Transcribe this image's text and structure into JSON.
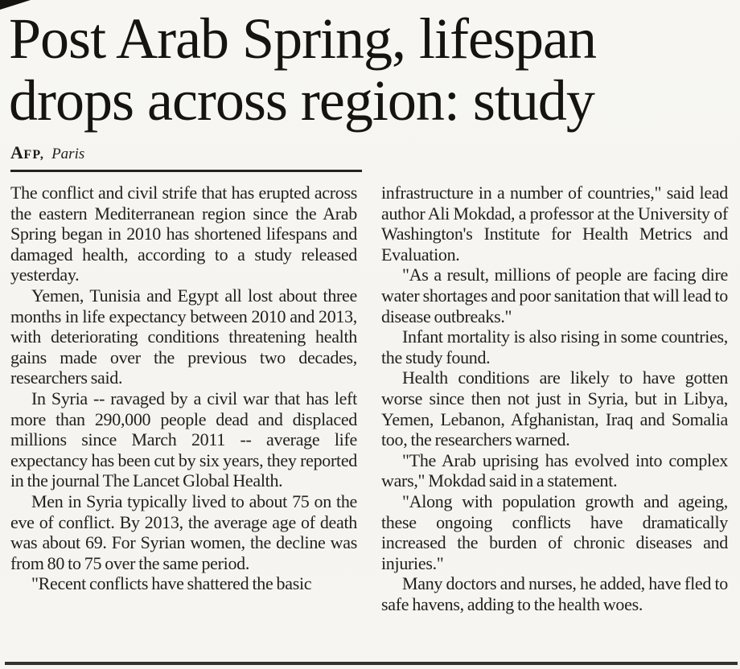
{
  "headline": {
    "line1": "Post Arab Spring, lifespan",
    "line2": "drops across region: study"
  },
  "byline": {
    "agency": "AFP,",
    "location": "Paris"
  },
  "columns": {
    "left": [
      {
        "indent": false,
        "text": "The conflict and civil strife that has erupted across the eastern Mediterranean region since the Arab Spring began in 2010 has shortened lifespans and damaged health, according to a study released yesterday."
      },
      {
        "indent": true,
        "text": "Yemen, Tunisia and Egypt all lost about three months in life expectancy between 2010 and 2013, with deteriorating conditions threatening health gains made over the previous two decades, researchers said."
      },
      {
        "indent": true,
        "text": "In Syria -- ravaged by a civil war that has left more than 290,000 people dead and displaced millions since March 2011 -- average life expectancy has been cut by six years, they reported in the journal The Lancet Global Health."
      },
      {
        "indent": true,
        "text": "Men in Syria typically lived to about 75 on the eve of conflict. By 2013, the average age of death was about 69. For Syrian women, the decline was from 80 to 75 over the same period."
      },
      {
        "indent": true,
        "text": "\"Recent conflicts have shattered the basic"
      }
    ],
    "right": [
      {
        "indent": false,
        "text": "infrastructure in a number of countries,\" said lead author Ali Mokdad, a professor at the University of Washington's Institute for Health Metrics and Evaluation."
      },
      {
        "indent": true,
        "text": "\"As a result, millions of people are facing dire water shortages and poor sanitation that will lead to disease outbreaks.\""
      },
      {
        "indent": true,
        "text": "Infant mortality is also rising in some countries, the study found."
      },
      {
        "indent": true,
        "text": "Health conditions are likely to have gotten worse since then not just in Syria, but in Libya, Yemen, Lebanon, Afghanistan, Iraq and Somalia too, the researchers warned."
      },
      {
        "indent": true,
        "text": "\"The Arab uprising has evolved into complex wars,\" Mokdad said in a statement."
      },
      {
        "indent": true,
        "text": "\"Along with population growth and ageing, these ongoing conflicts have dramatically increased the burden of chronic diseases and injuries.\""
      },
      {
        "indent": true,
        "text": "Many doctors and nurses, he added, have fled to safe havens, adding to the health woes."
      }
    ]
  },
  "colors": {
    "paper": "#f6f5f1",
    "ink": "#201f1d",
    "rule": "#2b2a27"
  }
}
